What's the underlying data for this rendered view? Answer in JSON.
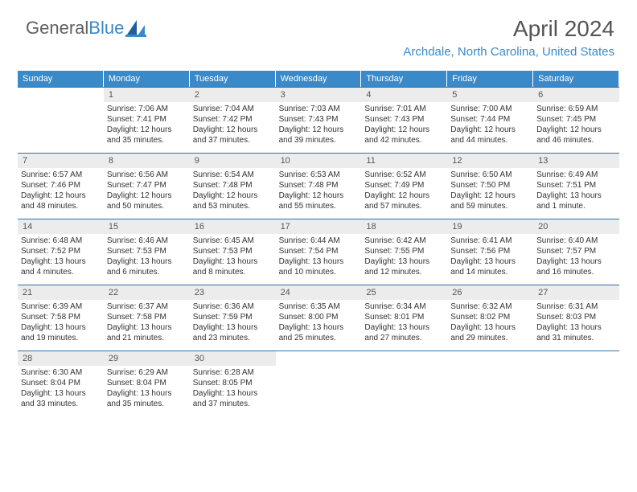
{
  "logo": {
    "part1": "General",
    "part2": "Blue"
  },
  "title": "April 2024",
  "subtitle": "Archdale, North Carolina, United States",
  "colors": {
    "header_bg": "#3a89c9",
    "header_text": "#ffffff",
    "daynum_bg": "#ececec",
    "border": "#2f6fa5",
    "logo_gray": "#606060",
    "logo_blue": "#3a89c9"
  },
  "day_names": [
    "Sunday",
    "Monday",
    "Tuesday",
    "Wednesday",
    "Thursday",
    "Friday",
    "Saturday"
  ],
  "leading_blanks": 1,
  "days": [
    {
      "n": "1",
      "sr": "7:06 AM",
      "ss": "7:41 PM",
      "d": "12 hours and 35 minutes."
    },
    {
      "n": "2",
      "sr": "7:04 AM",
      "ss": "7:42 PM",
      "d": "12 hours and 37 minutes."
    },
    {
      "n": "3",
      "sr": "7:03 AM",
      "ss": "7:43 PM",
      "d": "12 hours and 39 minutes."
    },
    {
      "n": "4",
      "sr": "7:01 AM",
      "ss": "7:43 PM",
      "d": "12 hours and 42 minutes."
    },
    {
      "n": "5",
      "sr": "7:00 AM",
      "ss": "7:44 PM",
      "d": "12 hours and 44 minutes."
    },
    {
      "n": "6",
      "sr": "6:59 AM",
      "ss": "7:45 PM",
      "d": "12 hours and 46 minutes."
    },
    {
      "n": "7",
      "sr": "6:57 AM",
      "ss": "7:46 PM",
      "d": "12 hours and 48 minutes."
    },
    {
      "n": "8",
      "sr": "6:56 AM",
      "ss": "7:47 PM",
      "d": "12 hours and 50 minutes."
    },
    {
      "n": "9",
      "sr": "6:54 AM",
      "ss": "7:48 PM",
      "d": "12 hours and 53 minutes."
    },
    {
      "n": "10",
      "sr": "6:53 AM",
      "ss": "7:48 PM",
      "d": "12 hours and 55 minutes."
    },
    {
      "n": "11",
      "sr": "6:52 AM",
      "ss": "7:49 PM",
      "d": "12 hours and 57 minutes."
    },
    {
      "n": "12",
      "sr": "6:50 AM",
      "ss": "7:50 PM",
      "d": "12 hours and 59 minutes."
    },
    {
      "n": "13",
      "sr": "6:49 AM",
      "ss": "7:51 PM",
      "d": "13 hours and 1 minute."
    },
    {
      "n": "14",
      "sr": "6:48 AM",
      "ss": "7:52 PM",
      "d": "13 hours and 4 minutes."
    },
    {
      "n": "15",
      "sr": "6:46 AM",
      "ss": "7:53 PM",
      "d": "13 hours and 6 minutes."
    },
    {
      "n": "16",
      "sr": "6:45 AM",
      "ss": "7:53 PM",
      "d": "13 hours and 8 minutes."
    },
    {
      "n": "17",
      "sr": "6:44 AM",
      "ss": "7:54 PM",
      "d": "13 hours and 10 minutes."
    },
    {
      "n": "18",
      "sr": "6:42 AM",
      "ss": "7:55 PM",
      "d": "13 hours and 12 minutes."
    },
    {
      "n": "19",
      "sr": "6:41 AM",
      "ss": "7:56 PM",
      "d": "13 hours and 14 minutes."
    },
    {
      "n": "20",
      "sr": "6:40 AM",
      "ss": "7:57 PM",
      "d": "13 hours and 16 minutes."
    },
    {
      "n": "21",
      "sr": "6:39 AM",
      "ss": "7:58 PM",
      "d": "13 hours and 19 minutes."
    },
    {
      "n": "22",
      "sr": "6:37 AM",
      "ss": "7:58 PM",
      "d": "13 hours and 21 minutes."
    },
    {
      "n": "23",
      "sr": "6:36 AM",
      "ss": "7:59 PM",
      "d": "13 hours and 23 minutes."
    },
    {
      "n": "24",
      "sr": "6:35 AM",
      "ss": "8:00 PM",
      "d": "13 hours and 25 minutes."
    },
    {
      "n": "25",
      "sr": "6:34 AM",
      "ss": "8:01 PM",
      "d": "13 hours and 27 minutes."
    },
    {
      "n": "26",
      "sr": "6:32 AM",
      "ss": "8:02 PM",
      "d": "13 hours and 29 minutes."
    },
    {
      "n": "27",
      "sr": "6:31 AM",
      "ss": "8:03 PM",
      "d": "13 hours and 31 minutes."
    },
    {
      "n": "28",
      "sr": "6:30 AM",
      "ss": "8:04 PM",
      "d": "13 hours and 33 minutes."
    },
    {
      "n": "29",
      "sr": "6:29 AM",
      "ss": "8:04 PM",
      "d": "13 hours and 35 minutes."
    },
    {
      "n": "30",
      "sr": "6:28 AM",
      "ss": "8:05 PM",
      "d": "13 hours and 37 minutes."
    }
  ],
  "labels": {
    "sunrise": "Sunrise: ",
    "sunset": "Sunset: ",
    "daylight": "Daylight: "
  }
}
